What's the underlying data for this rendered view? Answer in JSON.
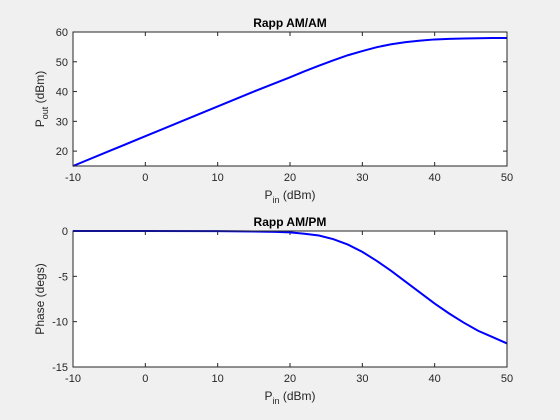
{
  "colors": {
    "background": "#f0f0f0",
    "axes_bg": "#ffffff",
    "axis": "#262626",
    "line": "#0000ff"
  },
  "chart_data": [
    {
      "type": "line",
      "title": "Rapp AM/AM",
      "xlabel_main": "P",
      "xlabel_sub": "in",
      "xlabel_unit": " (dBm)",
      "ylabel_main": "P",
      "ylabel_sub": "out",
      "ylabel_unit": " (dBm)",
      "xlim": [
        -10,
        50
      ],
      "ylim": [
        15,
        60
      ],
      "xticks": [
        -10,
        0,
        10,
        20,
        30,
        40,
        50
      ],
      "yticks": [
        20,
        30,
        40,
        50,
        60
      ],
      "grid": false,
      "series": [
        {
          "x": [
            -10,
            -5,
            0,
            5,
            10,
            15,
            20,
            22,
            24,
            26,
            28,
            30,
            32,
            34,
            36,
            38,
            40,
            42,
            44,
            46,
            48,
            50
          ],
          "y": [
            15.0,
            20.0,
            25.0,
            30.0,
            35.0,
            40.0,
            44.8,
            46.8,
            48.7,
            50.5,
            52.2,
            53.6,
            54.9,
            55.9,
            56.6,
            57.1,
            57.5,
            57.7,
            57.8,
            57.9,
            58.0,
            58.0
          ]
        }
      ]
    },
    {
      "type": "line",
      "title": "Rapp AM/PM",
      "xlabel_main": "P",
      "xlabel_sub": "in",
      "xlabel_unit": " (dBm)",
      "ylabel": "Phase (degs)",
      "xlim": [
        -10,
        50
      ],
      "ylim": [
        -15,
        0
      ],
      "xticks": [
        -10,
        0,
        10,
        20,
        30,
        40,
        50
      ],
      "yticks": [
        -15,
        -10,
        -5,
        0
      ],
      "grid": false,
      "series": [
        {
          "x": [
            -10,
            0,
            10,
            15,
            18,
            20,
            22,
            24,
            26,
            28,
            30,
            32,
            34,
            36,
            38,
            40,
            42,
            44,
            46,
            48,
            50
          ],
          "y": [
            0.0,
            0.0,
            -0.02,
            -0.05,
            -0.09,
            -0.15,
            -0.3,
            -0.5,
            -0.9,
            -1.5,
            -2.3,
            -3.3,
            -4.4,
            -5.6,
            -6.8,
            -8.0,
            -9.1,
            -10.1,
            -11.0,
            -11.7,
            -12.4
          ]
        }
      ]
    }
  ]
}
